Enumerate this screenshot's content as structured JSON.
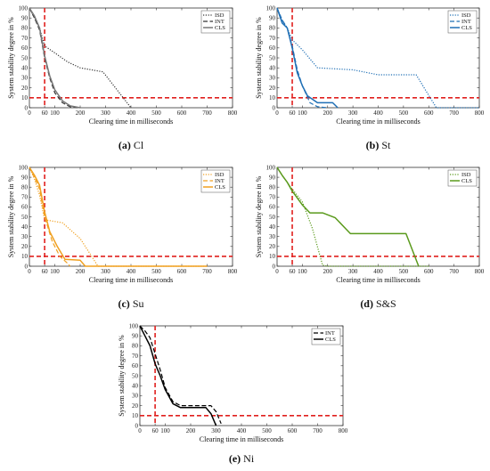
{
  "chart_data": [
    {
      "type": "line",
      "caption_label": "(a)",
      "caption_text": "Cl",
      "xlabel": "Clearing time in milliseconds",
      "ylabel": "System stability degree in %",
      "xlim": [
        0,
        800
      ],
      "ylim": [
        0,
        100
      ],
      "xticks": [
        0,
        60,
        100,
        200,
        300,
        400,
        500,
        600,
        700,
        800
      ],
      "yticks": [
        0,
        10,
        20,
        30,
        40,
        50,
        60,
        70,
        80,
        90,
        100
      ],
      "threshold_x": 60,
      "threshold_y": 10,
      "legend_position": "top-right",
      "series": [
        {
          "name": "ISD",
          "style": "dotted",
          "color": "#333333",
          "x": [
            0,
            20,
            40,
            60,
            100,
            150,
            200,
            290,
            400
          ],
          "y": [
            100,
            90,
            80,
            62,
            55,
            46,
            40,
            36,
            0
          ]
        },
        {
          "name": "INT",
          "style": "dashed",
          "color": "#333333",
          "x": [
            0,
            20,
            40,
            60,
            80,
            100,
            130,
            160,
            200
          ],
          "y": [
            100,
            90,
            78,
            50,
            30,
            15,
            5,
            1,
            0
          ]
        },
        {
          "name": "CLS",
          "style": "solid",
          "color": "#777777",
          "x": [
            0,
            20,
            40,
            60,
            80,
            100,
            130,
            160,
            200
          ],
          "y": [
            100,
            92,
            80,
            52,
            32,
            18,
            7,
            2,
            0
          ]
        }
      ]
    },
    {
      "type": "line",
      "caption_label": "(b)",
      "caption_text": "St",
      "xlabel": "Clearing time in milliseconds",
      "ylabel": "System stability degree in %",
      "xlim": [
        0,
        800
      ],
      "ylim": [
        0,
        100
      ],
      "xticks": [
        0,
        60,
        100,
        200,
        300,
        400,
        500,
        600,
        700,
        800
      ],
      "yticks": [
        0,
        10,
        20,
        30,
        40,
        50,
        60,
        70,
        80,
        90,
        100
      ],
      "threshold_x": 60,
      "threshold_y": 10,
      "legend_position": "top-right",
      "series": [
        {
          "name": "ISD",
          "style": "dotted",
          "color": "#1f6fb5",
          "x": [
            0,
            20,
            40,
            60,
            100,
            160,
            300,
            400,
            550,
            630,
            800
          ],
          "y": [
            100,
            88,
            80,
            68,
            58,
            40,
            38,
            33,
            33,
            0,
            0
          ]
        },
        {
          "name": "INT",
          "style": "dashed",
          "color": "#1f6fb5",
          "x": [
            0,
            20,
            40,
            60,
            80,
            100,
            130,
            160,
            200
          ],
          "y": [
            100,
            88,
            80,
            62,
            38,
            22,
            5,
            1,
            0
          ]
        },
        {
          "name": "CLS",
          "style": "solid",
          "color": "#1f6fb5",
          "x": [
            0,
            20,
            40,
            60,
            80,
            100,
            120,
            160,
            220,
            240
          ],
          "y": [
            100,
            85,
            80,
            60,
            35,
            22,
            12,
            5,
            5,
            0
          ]
        }
      ]
    },
    {
      "type": "line",
      "caption_label": "(c)",
      "caption_text": "Su",
      "xlabel": "Clearing time in milliseconds",
      "ylabel": "System stability degree in %",
      "xlim": [
        0,
        800
      ],
      "ylim": [
        0,
        100
      ],
      "xticks": [
        0,
        60,
        100,
        200,
        300,
        400,
        500,
        600,
        700,
        800
      ],
      "yticks": [
        0,
        10,
        20,
        30,
        40,
        50,
        60,
        70,
        80,
        90,
        100
      ],
      "threshold_x": 60,
      "threshold_y": 10,
      "legend_position": "top-right",
      "series": [
        {
          "name": "ISD",
          "style": "dotted",
          "color": "#f0a020",
          "x": [
            0,
            20,
            40,
            60,
            130,
            200,
            270,
            700
          ],
          "y": [
            100,
            88,
            72,
            47,
            44,
            28,
            0,
            0
          ]
        },
        {
          "name": "INT",
          "style": "dashed",
          "color": "#f0a020",
          "x": [
            0,
            20,
            40,
            60,
            90,
            120,
            150,
            160
          ],
          "y": [
            100,
            90,
            78,
            50,
            25,
            10,
            3,
            0
          ]
        },
        {
          "name": "CLS",
          "style": "solid",
          "color": "#f0a020",
          "x": [
            0,
            20,
            40,
            60,
            80,
            110,
            140,
            200,
            220,
            700
          ],
          "y": [
            100,
            92,
            82,
            55,
            35,
            20,
            7,
            6,
            0,
            0
          ]
        }
      ]
    },
    {
      "type": "line",
      "caption_label": "(d)",
      "caption_text": "S&S",
      "xlabel": "Clearing time in milliseconds",
      "ylabel": "System stability degree in %",
      "xlim": [
        0,
        800
      ],
      "ylim": [
        0,
        100
      ],
      "xticks": [
        0,
        60,
        100,
        200,
        300,
        400,
        500,
        600,
        700,
        800
      ],
      "yticks": [
        0,
        10,
        20,
        30,
        40,
        50,
        60,
        70,
        80,
        90,
        100
      ],
      "threshold_x": 60,
      "threshold_y": 10,
      "legend_position": "top-right",
      "series": [
        {
          "name": "ISD",
          "style": "dotted",
          "color": "#5a9a1c",
          "x": [
            0,
            20,
            40,
            60,
            100,
            140,
            180,
            200,
            600
          ],
          "y": [
            100,
            92,
            85,
            78,
            65,
            38,
            1,
            0,
            0
          ]
        },
        {
          "name": "CLS",
          "style": "solid",
          "color": "#5a9a1c",
          "x": [
            0,
            20,
            40,
            60,
            100,
            130,
            180,
            230,
            290,
            510,
            560
          ],
          "y": [
            100,
            92,
            85,
            76,
            62,
            54,
            54,
            49,
            33,
            33,
            0
          ]
        }
      ]
    },
    {
      "type": "line",
      "caption_label": "(e)",
      "caption_text": "Ni",
      "xlabel": "Clearing time in milliseconds",
      "ylabel": "System stability degree in %",
      "xlim": [
        0,
        800
      ],
      "ylim": [
        0,
        100
      ],
      "xticks": [
        0,
        60,
        100,
        200,
        300,
        400,
        500,
        600,
        700,
        800
      ],
      "yticks": [
        0,
        10,
        20,
        30,
        40,
        50,
        60,
        70,
        80,
        90,
        100
      ],
      "threshold_x": 60,
      "threshold_y": 10,
      "legend_position": "top-right",
      "series": [
        {
          "name": "INT",
          "style": "dashed",
          "color": "#000000",
          "x": [
            0,
            20,
            40,
            60,
            80,
            100,
            130,
            160,
            200,
            280,
            300,
            320
          ],
          "y": [
            100,
            95,
            88,
            72,
            56,
            38,
            24,
            20,
            20,
            20,
            14,
            2
          ]
        },
        {
          "name": "CLS",
          "style": "solid",
          "color": "#000000",
          "x": [
            0,
            20,
            40,
            60,
            80,
            100,
            130,
            160,
            200,
            260,
            280,
            300
          ],
          "y": [
            100,
            90,
            80,
            62,
            50,
            36,
            22,
            18,
            18,
            18,
            12,
            0
          ]
        }
      ]
    }
  ],
  "colors": {
    "threshold": "#e0201e",
    "axis": "#333333",
    "grid": "#cccccc"
  }
}
